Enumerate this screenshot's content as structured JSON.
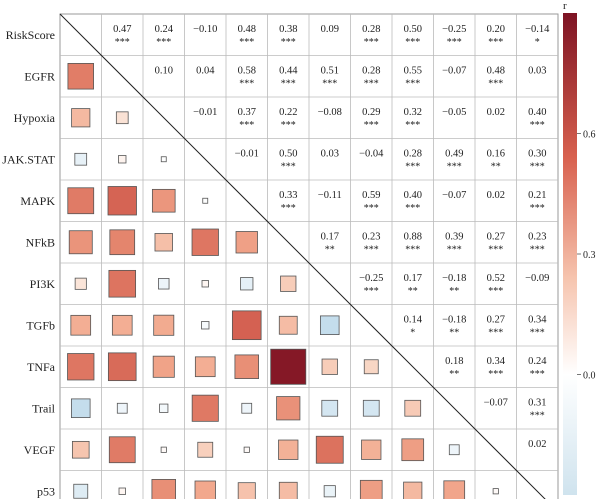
{
  "chart_data": {
    "type": "heatmap",
    "title": "",
    "variables": [
      "RiskScore",
      "EGFR",
      "Hypoxia",
      "JAK.STAT",
      "MAPK",
      "NFkB",
      "PI3K",
      "TGFb",
      "TNFa",
      "Trail",
      "VEGF",
      "p53"
    ],
    "upper_values": [
      [
        "",
        "0.47",
        "0.24",
        "−0.10",
        "0.48",
        "0.38",
        "0.09",
        "0.28",
        "0.50",
        "−0.25",
        "0.20",
        "−0.14"
      ],
      [
        "",
        "",
        "0.10",
        "0.04",
        "0.58",
        "0.44",
        "0.51",
        "0.28",
        "0.55",
        "−0.07",
        "0.48",
        "0.03"
      ],
      [
        "",
        "",
        "",
        "−0.01",
        "0.37",
        "0.22",
        "−0.08",
        "0.29",
        "0.32",
        "−0.05",
        "0.02",
        "0.40"
      ],
      [
        "",
        "",
        "",
        "",
        "−0.01",
        "0.50",
        "0.03",
        "−0.04",
        "0.28",
        "0.49",
        "0.16",
        "0.30"
      ],
      [
        "",
        "",
        "",
        "",
        "",
        "0.33",
        "−0.11",
        "0.59",
        "0.40",
        "−0.07",
        "0.02",
        "0.21"
      ],
      [
        "",
        "",
        "",
        "",
        "",
        "",
        "0.17",
        "0.23",
        "0.88",
        "0.39",
        "0.27",
        "0.23"
      ],
      [
        "",
        "",
        "",
        "",
        "",
        "",
        "",
        "−0.25",
        "0.17",
        "−0.18",
        "0.52",
        "−0.09"
      ],
      [
        "",
        "",
        "",
        "",
        "",
        "",
        "",
        "",
        "0.14",
        "−0.18",
        "0.27",
        "0.34"
      ],
      [
        "",
        "",
        "",
        "",
        "",
        "",
        "",
        "",
        "",
        "0.18",
        "0.34",
        "0.24"
      ],
      [
        "",
        "",
        "",
        "",
        "",
        "",
        "",
        "",
        "",
        "",
        "−0.07",
        "0.31"
      ],
      [
        "",
        "",
        "",
        "",
        "",
        "",
        "",
        "",
        "",
        "",
        "",
        "0.02"
      ],
      [
        "",
        "",
        "",
        "",
        "",
        "",
        "",
        "",
        "",
        "",
        "",
        ""
      ]
    ],
    "upper_sig": [
      [
        "",
        "***",
        "***",
        "",
        "***",
        "***",
        "",
        "***",
        "***",
        "***",
        "***",
        "*"
      ],
      [
        "",
        "",
        "",
        "",
        "***",
        "***",
        "***",
        "***",
        "***",
        "",
        "***",
        ""
      ],
      [
        "",
        "",
        "",
        "",
        "***",
        "***",
        "",
        "***",
        "***",
        "",
        "",
        "***"
      ],
      [
        "",
        "",
        "",
        "",
        "",
        "***",
        "",
        "",
        "***",
        "***",
        "**",
        "***"
      ],
      [
        "",
        "",
        "",
        "",
        "",
        "***",
        "",
        "***",
        "***",
        "",
        "",
        "***"
      ],
      [
        "",
        "",
        "",
        "",
        "",
        "",
        "**",
        "***",
        "***",
        "***",
        "***",
        "***"
      ],
      [
        "",
        "",
        "",
        "",
        "",
        "",
        "",
        "***",
        "**",
        "**",
        "***",
        ""
      ],
      [
        "",
        "",
        "",
        "",
        "",
        "",
        "",
        "",
        "*",
        "**",
        "***",
        "***"
      ],
      [
        "",
        "",
        "",
        "",
        "",
        "",
        "",
        "",
        "",
        "**",
        "***",
        "***"
      ],
      [
        "",
        "",
        "",
        "",
        "",
        "",
        "",
        "",
        "",
        "",
        "",
        "***"
      ],
      [
        "",
        "",
        "",
        "",
        "",
        "",
        "",
        "",
        "",
        "",
        "",
        ""
      ],
      [
        "",
        "",
        "",
        "",
        "",
        "",
        "",
        "",
        "",
        "",
        "",
        ""
      ]
    ],
    "lower_r": [
      [
        null
      ],
      [
        0.47
      ],
      [
        0.24,
        0.1
      ],
      [
        -0.1,
        0.04,
        -0.01
      ],
      [
        0.48,
        0.58,
        0.37,
        -0.01
      ],
      [
        0.38,
        0.44,
        0.22,
        0.5,
        0.33
      ],
      [
        0.09,
        0.51,
        -0.08,
        0.03,
        -0.11,
        0.17
      ],
      [
        0.28,
        0.28,
        0.29,
        -0.04,
        0.59,
        0.23,
        -0.25
      ],
      [
        0.5,
        0.55,
        0.32,
        0.28,
        0.4,
        0.88,
        0.17,
        0.14
      ],
      [
        -0.25,
        -0.07,
        -0.05,
        0.49,
        -0.07,
        0.39,
        -0.18,
        -0.18,
        0.18
      ],
      [
        0.2,
        0.48,
        0.02,
        0.16,
        0.02,
        0.27,
        0.52,
        0.27,
        0.34,
        -0.07
      ],
      [
        -0.14,
        0.03,
        0.4,
        0.3,
        0.21,
        0.23,
        -0.09,
        0.34,
        0.24,
        0.31,
        0.02
      ]
    ],
    "colorbar": {
      "label": "r",
      "ticks": [
        {
          "value": 0.0,
          "label": "0.0"
        },
        {
          "value": 0.3,
          "label": "0.3"
        },
        {
          "value": 0.6,
          "label": "0.6"
        }
      ],
      "range": [
        -0.3,
        0.9
      ],
      "colors": {
        "negative": "#cfe3ee",
        "zero": "#ffffff",
        "positive": "#7d1323"
      }
    },
    "grid": true
  }
}
